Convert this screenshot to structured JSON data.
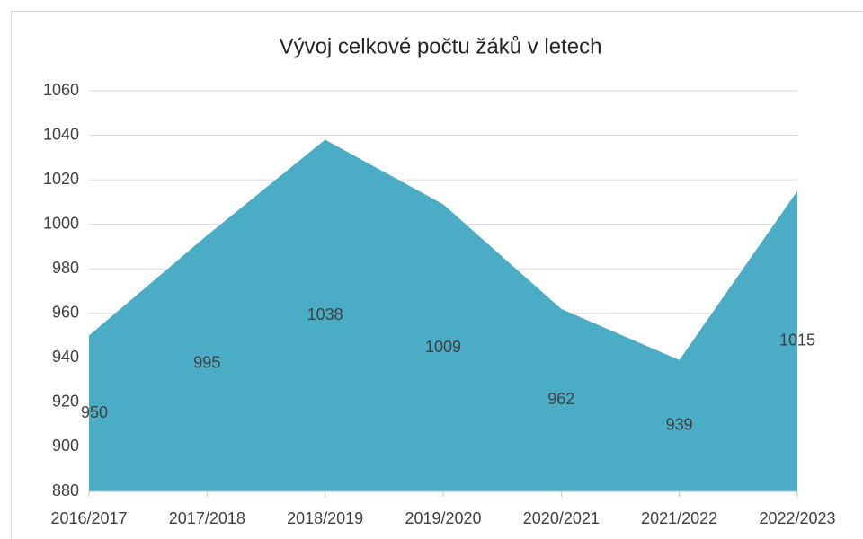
{
  "chart_data": {
    "type": "area",
    "title": "Vývoj celkové počtu žáků v letech",
    "categories": [
      "2016/2017",
      "2017/2018",
      "2018/2019",
      "2019/2020",
      "2020/2021",
      "2021/2022",
      "2022/2023"
    ],
    "values": [
      950,
      995,
      1038,
      1009,
      962,
      939,
      1015
    ],
    "color": "#4bacc6",
    "ylim": [
      880,
      1060
    ],
    "yticks": [
      880,
      900,
      920,
      940,
      960,
      980,
      1000,
      1020,
      1040,
      1060
    ],
    "grid": true
  }
}
